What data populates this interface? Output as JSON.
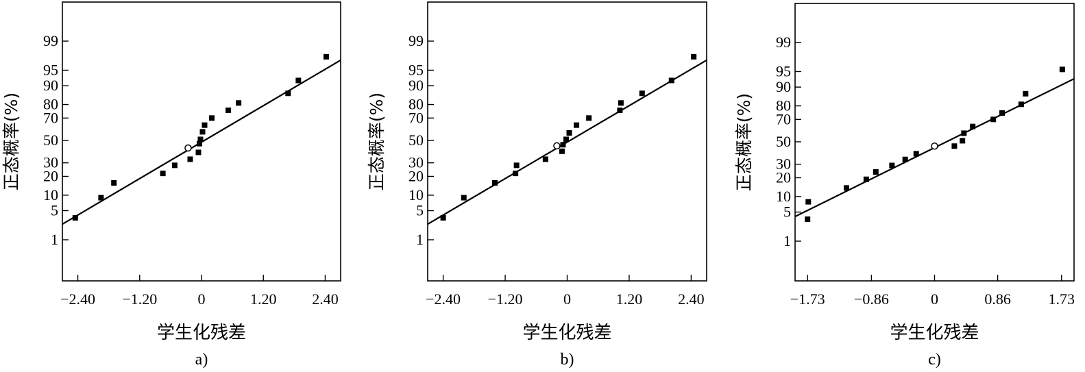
{
  "chart_data": [
    {
      "type": "scatter",
      "panel_label": "a)",
      "xlabel": "学生化残差",
      "ylabel": "正态概率(%)",
      "xlim": [
        -2.7,
        2.7
      ],
      "xticks": [
        -2.4,
        -1.2,
        0,
        1.2,
        2.4
      ],
      "xtick_labels": [
        "−2.40",
        "−1.20",
        "0",
        "1.20",
        "2.40"
      ],
      "yticks": [
        1,
        5,
        10,
        20,
        30,
        50,
        70,
        80,
        90,
        95,
        99
      ],
      "yscale": "normal-probability",
      "grid": false,
      "fit_line": {
        "x": [
          -2.7,
          2.7
        ],
        "y": [
          2.5,
          97
        ]
      },
      "points": [
        {
          "x": -2.45,
          "y": 3.5,
          "marker": "square"
        },
        {
          "x": -1.95,
          "y": 9,
          "marker": "square"
        },
        {
          "x": -1.7,
          "y": 16,
          "marker": "square"
        },
        {
          "x": -0.75,
          "y": 22,
          "marker": "square"
        },
        {
          "x": -0.52,
          "y": 28,
          "marker": "square"
        },
        {
          "x": -0.22,
          "y": 33,
          "marker": "square"
        },
        {
          "x": -0.26,
          "y": 43,
          "marker": "circle-open"
        },
        {
          "x": -0.06,
          "y": 39,
          "marker": "square"
        },
        {
          "x": -0.04,
          "y": 47,
          "marker": "square"
        },
        {
          "x": -0.02,
          "y": 51,
          "marker": "square"
        },
        {
          "x": 0.02,
          "y": 58,
          "marker": "square"
        },
        {
          "x": 0.06,
          "y": 64,
          "marker": "square"
        },
        {
          "x": 0.2,
          "y": 70,
          "marker": "square"
        },
        {
          "x": 0.52,
          "y": 76,
          "marker": "square"
        },
        {
          "x": 0.72,
          "y": 81,
          "marker": "square"
        },
        {
          "x": 1.68,
          "y": 86.5,
          "marker": "square"
        },
        {
          "x": 1.88,
          "y": 92,
          "marker": "square"
        },
        {
          "x": 2.42,
          "y": 97.5,
          "marker": "square"
        }
      ]
    },
    {
      "type": "scatter",
      "panel_label": "b)",
      "xlabel": "学生化残差",
      "ylabel": "正态概率(%)",
      "xlim": [
        -2.7,
        2.7
      ],
      "xticks": [
        -2.4,
        -1.2,
        0,
        1.2,
        2.4
      ],
      "xtick_labels": [
        "−2.40",
        "−1.20",
        "0",
        "1.20",
        "2.40"
      ],
      "yticks": [
        1,
        5,
        10,
        20,
        30,
        50,
        70,
        80,
        90,
        95,
        99
      ],
      "yscale": "normal-probability",
      "grid": false,
      "fit_line": {
        "x": [
          -2.7,
          2.7
        ],
        "y": [
          2.5,
          97
        ]
      },
      "points": [
        {
          "x": -2.4,
          "y": 3.5,
          "marker": "square"
        },
        {
          "x": -2.0,
          "y": 9,
          "marker": "square"
        },
        {
          "x": -1.4,
          "y": 16,
          "marker": "square"
        },
        {
          "x": -1.0,
          "y": 22,
          "marker": "square"
        },
        {
          "x": -0.98,
          "y": 28,
          "marker": "square"
        },
        {
          "x": -0.42,
          "y": 33,
          "marker": "square"
        },
        {
          "x": -0.2,
          "y": 45,
          "marker": "circle-open"
        },
        {
          "x": -0.1,
          "y": 40,
          "marker": "square"
        },
        {
          "x": -0.08,
          "y": 46,
          "marker": "square"
        },
        {
          "x": -0.02,
          "y": 51,
          "marker": "square"
        },
        {
          "x": 0.04,
          "y": 57,
          "marker": "square"
        },
        {
          "x": 0.18,
          "y": 64,
          "marker": "square"
        },
        {
          "x": 0.42,
          "y": 70,
          "marker": "square"
        },
        {
          "x": 1.02,
          "y": 76,
          "marker": "square"
        },
        {
          "x": 1.04,
          "y": 81,
          "marker": "square"
        },
        {
          "x": 1.45,
          "y": 86.5,
          "marker": "square"
        },
        {
          "x": 2.02,
          "y": 92,
          "marker": "square"
        },
        {
          "x": 2.45,
          "y": 97.5,
          "marker": "square"
        }
      ]
    },
    {
      "type": "scatter",
      "panel_label": "c)",
      "xlabel": "学生化残差",
      "ylabel": "正态概率(%)",
      "xlim": [
        -1.9,
        1.9
      ],
      "xticks": [
        -1.73,
        -0.86,
        0,
        0.86,
        1.73
      ],
      "xtick_labels": [
        "−1.73",
        "−0.86",
        "0",
        "0.86",
        "1.73"
      ],
      "yticks": [
        1,
        5,
        10,
        20,
        30,
        50,
        70,
        80,
        90,
        95,
        99
      ],
      "yscale": "normal-probability",
      "grid": false,
      "fit_line": {
        "x": [
          -1.9,
          1.9
        ],
        "y": [
          4,
          93
        ]
      },
      "points": [
        {
          "x": -1.73,
          "y": 3.5,
          "marker": "square"
        },
        {
          "x": -1.72,
          "y": 8,
          "marker": "square"
        },
        {
          "x": -1.2,
          "y": 14,
          "marker": "square"
        },
        {
          "x": -0.93,
          "y": 19,
          "marker": "square"
        },
        {
          "x": -0.8,
          "y": 24,
          "marker": "square"
        },
        {
          "x": -0.58,
          "y": 29,
          "marker": "square"
        },
        {
          "x": -0.4,
          "y": 34,
          "marker": "square"
        },
        {
          "x": -0.25,
          "y": 39,
          "marker": "square"
        },
        {
          "x": 0.0,
          "y": 46,
          "marker": "circle-open"
        },
        {
          "x": 0.27,
          "y": 46,
          "marker": "square"
        },
        {
          "x": 0.38,
          "y": 51,
          "marker": "square"
        },
        {
          "x": 0.4,
          "y": 58,
          "marker": "square"
        },
        {
          "x": 0.52,
          "y": 64,
          "marker": "square"
        },
        {
          "x": 0.8,
          "y": 70,
          "marker": "square"
        },
        {
          "x": 0.92,
          "y": 75,
          "marker": "square"
        },
        {
          "x": 1.18,
          "y": 81,
          "marker": "square"
        },
        {
          "x": 1.24,
          "y": 87,
          "marker": "square"
        },
        {
          "x": 1.74,
          "y": 95.5,
          "marker": "square"
        }
      ]
    }
  ]
}
